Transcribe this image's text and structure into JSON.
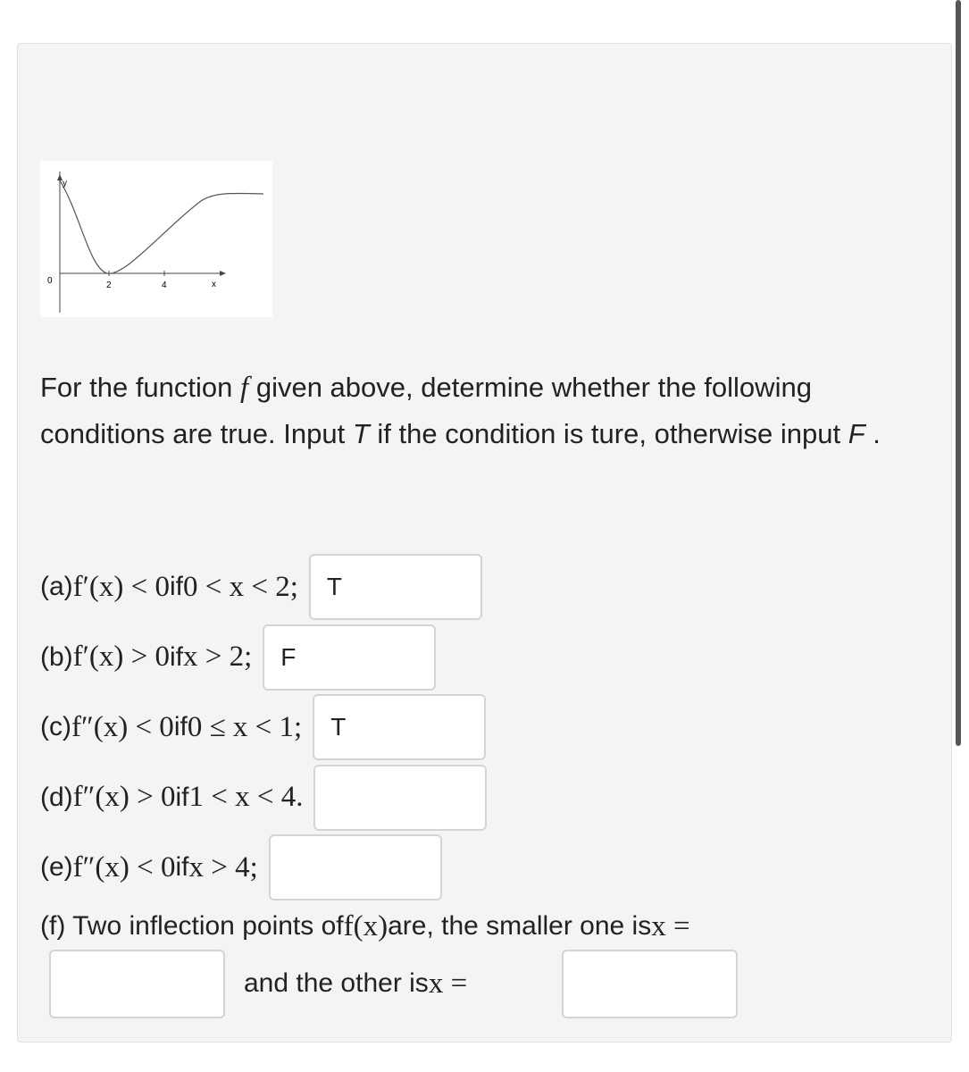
{
  "graph": {
    "y_label": "y",
    "x_label": "x",
    "origin": "0",
    "x_ticks": [
      "2",
      "4"
    ]
  },
  "intro": {
    "part1": "For the function",
    "f": "f",
    "part2": "given above, determine whether the following conditions are true. Input",
    "t": "T",
    "part3": "if the condition is ture, otherwise input",
    "F": "F",
    "end": "."
  },
  "items": [
    {
      "label": "(a)",
      "expr": "f′(x) < 0",
      "word": "if",
      "range": "0 < x < 2;",
      "answer": "T"
    },
    {
      "label": "(b)",
      "expr": "f′(x) > 0",
      "word": "if",
      "range": "x > 2;",
      "answer": "F"
    },
    {
      "label": "(c)",
      "expr": "f″(x) < 0",
      "word": "if",
      "range": "0 ≤ x < 1;",
      "answer": "T"
    },
    {
      "label": "(d)",
      "expr": "f″(x) > 0",
      "word": "if",
      "range": "1 < x < 4."
    },
    {
      "label": "(e)",
      "expr": "f″(x) < 0",
      "word": "if",
      "range": "x > 4;"
    }
  ],
  "last": {
    "label": "(f) Two inflection points of",
    "expr": "f(x)",
    "text": "are, the smaller one is",
    "expr2": "x =",
    "text2": "and the other is",
    "expr3": "x ="
  }
}
